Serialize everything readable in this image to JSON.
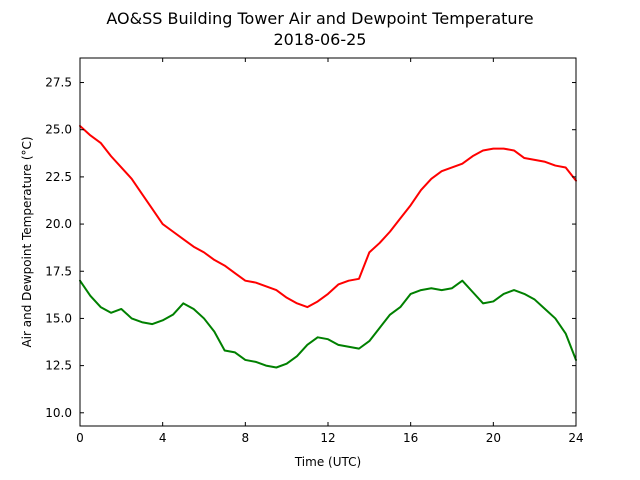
{
  "chart_data": {
    "type": "line",
    "title_lines": [
      "AO&SS Building Tower Air and Dewpoint Temperature",
      "2018-06-25"
    ],
    "xlabel": "Time (UTC)",
    "ylabel": "Air and Dewpoint Temperature (°C)",
    "xlim": [
      0,
      24
    ],
    "ylim": [
      9.3,
      28.8
    ],
    "x_ticks": [
      0,
      4,
      8,
      12,
      16,
      20,
      24
    ],
    "y_ticks": [
      10.0,
      12.5,
      15.0,
      17.5,
      20.0,
      22.5,
      25.0,
      27.5
    ],
    "y_tick_labels": [
      "10.0",
      "12.5",
      "15.0",
      "17.5",
      "20.0",
      "22.5",
      "25.0",
      "27.5"
    ],
    "grid": false,
    "series": [
      {
        "color": "#ff0000",
        "x": [
          0,
          0.5,
          1,
          1.5,
          2,
          2.5,
          3,
          3.5,
          4,
          4.5,
          5,
          5.5,
          6,
          6.5,
          7,
          7.5,
          8,
          8.5,
          9,
          9.5,
          10,
          10.5,
          11,
          11.5,
          12,
          12.5,
          13,
          13.5,
          14,
          14.5,
          15,
          15.5,
          16,
          16.5,
          17,
          17.5,
          18,
          18.5,
          19,
          19.5,
          20,
          20.5,
          21,
          21.5,
          22,
          22.5,
          23,
          23.5,
          24
        ],
        "y": [
          25.2,
          24.7,
          24.3,
          23.6,
          23.0,
          22.4,
          21.6,
          20.8,
          20.0,
          19.6,
          19.2,
          18.8,
          18.5,
          18.1,
          17.8,
          17.4,
          17.0,
          16.9,
          16.7,
          16.5,
          16.1,
          15.8,
          15.6,
          15.9,
          16.3,
          16.8,
          17.0,
          17.1,
          18.5,
          19.0,
          19.6,
          20.3,
          21.0,
          21.8,
          22.4,
          22.8,
          23.0,
          23.2,
          23.6,
          23.9,
          24.0,
          24.0,
          23.9,
          23.5,
          23.4,
          23.3,
          23.1,
          23.0,
          22.3
        ]
      },
      {
        "color": "#008000",
        "x": [
          0,
          0.5,
          1,
          1.5,
          2,
          2.5,
          3,
          3.5,
          4,
          4.5,
          5,
          5.5,
          6,
          6.5,
          7,
          7.5,
          8,
          8.5,
          9,
          9.5,
          10,
          10.5,
          11,
          11.5,
          12,
          12.5,
          13,
          13.5,
          14,
          14.5,
          15,
          15.5,
          16,
          16.5,
          17,
          17.5,
          18,
          18.5,
          19,
          19.5,
          20,
          20.5,
          21,
          21.5,
          22,
          22.5,
          23,
          23.5,
          24
        ],
        "y": [
          17.0,
          16.2,
          15.6,
          15.3,
          15.5,
          15.0,
          14.8,
          14.7,
          14.9,
          15.2,
          15.8,
          15.5,
          15.0,
          14.3,
          13.3,
          13.2,
          12.8,
          12.7,
          12.5,
          12.4,
          12.6,
          13.0,
          13.6,
          14.0,
          13.9,
          13.6,
          13.5,
          13.4,
          13.8,
          14.5,
          15.2,
          15.6,
          16.3,
          16.5,
          16.6,
          16.5,
          16.6,
          17.0,
          16.4,
          15.8,
          15.9,
          16.3,
          16.5,
          16.3,
          16.0,
          15.5,
          15.0,
          14.2,
          12.8
        ]
      }
    ]
  }
}
